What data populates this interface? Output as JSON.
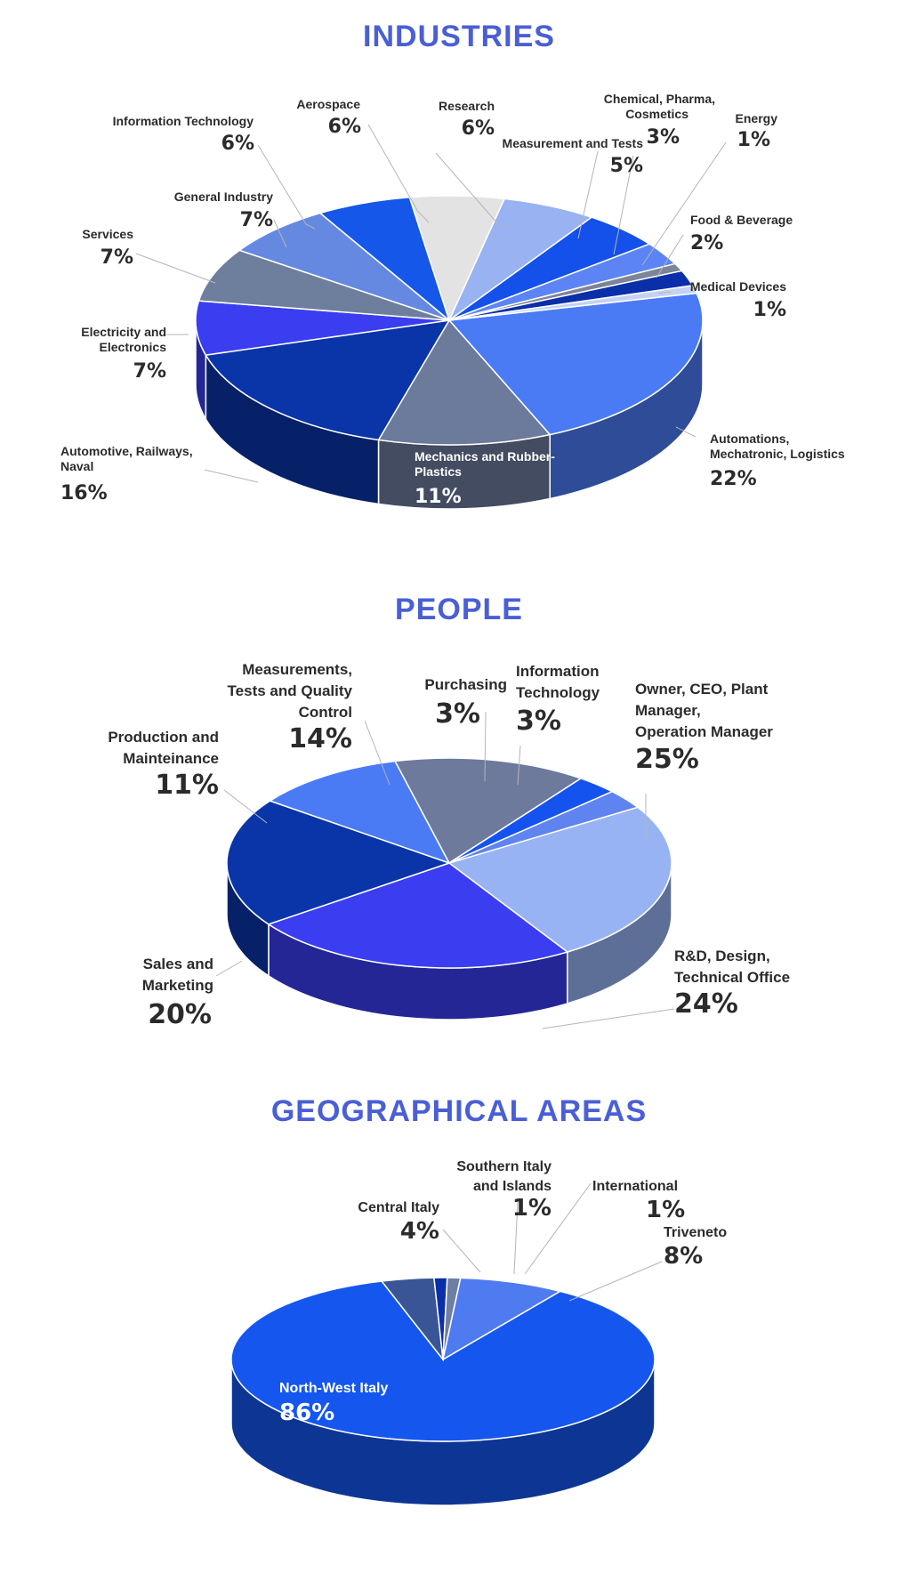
{
  "chart_data": [
    {
      "type": "pie",
      "title": "INDUSTRIES",
      "slices": [
        {
          "label": "Automations, Mechatronic, Logistics",
          "value": 22,
          "pct": "22%",
          "color": "#4a7bf5"
        },
        {
          "label": "Mechanics and Rubber-Plastics",
          "value": 11,
          "pct": "11%",
          "color": "#6c7a9b"
        },
        {
          "label": "Automotive, Railways, Naval",
          "value": 16,
          "pct": "16%",
          "color": "#0a35a8"
        },
        {
          "label": "Electricity and Electronics",
          "value": 7,
          "pct": "7%",
          "color": "#3a3ef0"
        },
        {
          "label": "Services",
          "value": 7,
          "pct": "7%",
          "color": "#6e7f9d"
        },
        {
          "label": "General Industry",
          "value": 7,
          "pct": "7%",
          "color": "#6589e0"
        },
        {
          "label": "Information Technology",
          "value": 6,
          "pct": "6%",
          "color": "#1557e8"
        },
        {
          "label": "Aerospace",
          "value": 6,
          "pct": "6%",
          "color": "#e3e3e3"
        },
        {
          "label": "Research",
          "value": 6,
          "pct": "6%",
          "color": "#98b2f2"
        },
        {
          "label": "Measurement and Tests",
          "value": 5,
          "pct": "5%",
          "color": "#1450ea"
        },
        {
          "label": "Chemical, Pharma, Cosmetics",
          "value": 3,
          "pct": "3%",
          "color": "#5d84f4"
        },
        {
          "label": "Energy",
          "value": 1,
          "pct": "1%",
          "color": "#7b8498"
        },
        {
          "label": "Food & Beverage",
          "value": 2,
          "pct": "2%",
          "color": "#0a2fa8"
        },
        {
          "label": "Medical Devices",
          "value": 1,
          "pct": "1%",
          "color": "#c4d2f3"
        }
      ]
    },
    {
      "type": "pie",
      "title": "PEOPLE",
      "slices": [
        {
          "label": "Owner, CEO, Plant Manager, Operation Manager",
          "value": 25,
          "pct": "25%",
          "color": "#98b3f3"
        },
        {
          "label": "R&D, Design, Technical Office",
          "value": 24,
          "pct": "24%",
          "color": "#3a3ef0"
        },
        {
          "label": "Sales and Marketing",
          "value": 20,
          "pct": "20%",
          "color": "#0a35a8"
        },
        {
          "label": "Production and Mainteinance",
          "value": 11,
          "pct": "11%",
          "color": "#4a7bf5"
        },
        {
          "label": "Measurements, Tests and Quality Control",
          "value": 14,
          "pct": "14%",
          "color": "#6d7a9c"
        },
        {
          "label": "Purchasing",
          "value": 3,
          "pct": "3%",
          "color": "#1553ee"
        },
        {
          "label": "Information Technology",
          "value": 3,
          "pct": "3%",
          "color": "#5f84ef"
        }
      ]
    },
    {
      "type": "pie",
      "title": "GEOGRAPHICAL AREAS",
      "slices": [
        {
          "label": "North-West Italy",
          "value": 86,
          "pct": "86%",
          "color": "#1557ee"
        },
        {
          "label": "Central Italy",
          "value": 4,
          "pct": "4%",
          "color": "#3a5595"
        },
        {
          "label": "Southern Italy and Islands",
          "value": 1,
          "pct": "1%",
          "color": "#0a2fa8"
        },
        {
          "label": "International",
          "value": 1,
          "pct": "1%",
          "color": "#6f7fa3"
        },
        {
          "label": "Triveneto",
          "value": 8,
          "pct": "8%",
          "color": "#4f7bf0"
        }
      ]
    }
  ]
}
